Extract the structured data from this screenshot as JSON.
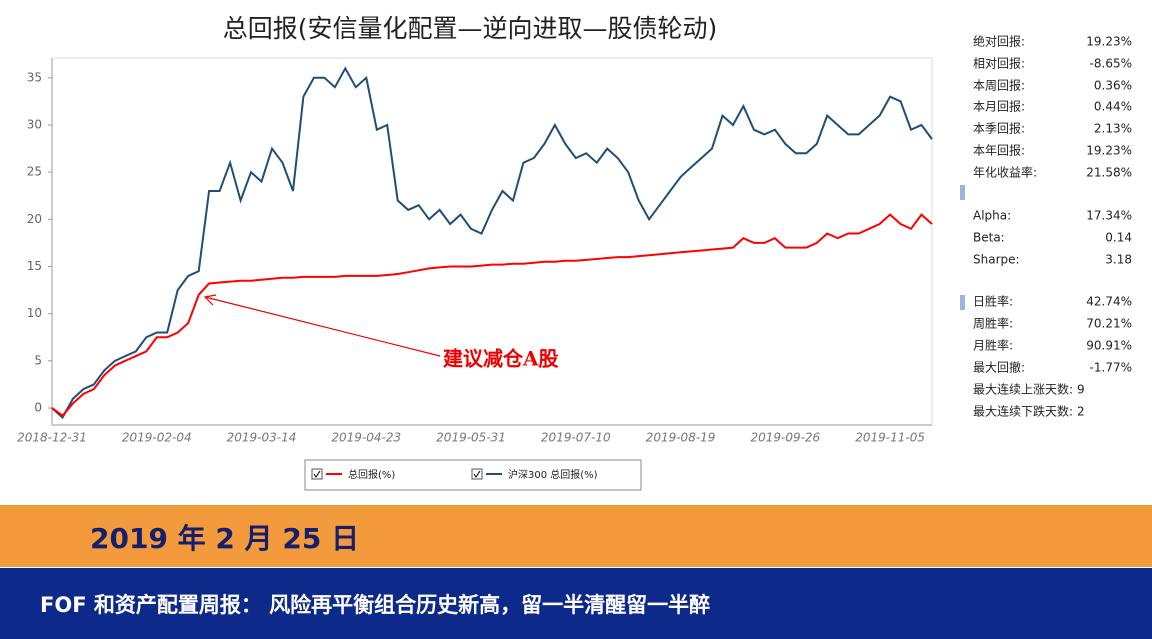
{
  "chart_data": {
    "type": "line",
    "title": "总回报(安信量化配置—逆向进取—股债轮动)",
    "categories": [
      "2018-12-31",
      null,
      null,
      null,
      null,
      null,
      null,
      null,
      null,
      null,
      "2019-02-04",
      null,
      null,
      null,
      null,
      null,
      null,
      null,
      null,
      null,
      "2019-03-14",
      null,
      null,
      null,
      null,
      null,
      null,
      null,
      null,
      null,
      "2019-04-23",
      null,
      null,
      null,
      null,
      null,
      null,
      null,
      null,
      null,
      "2019-05-31",
      null,
      null,
      null,
      null,
      null,
      null,
      null,
      null,
      null,
      "2019-07-10",
      null,
      null,
      null,
      null,
      null,
      null,
      null,
      null,
      null,
      "2019-08-19",
      null,
      null,
      null,
      null,
      null,
      null,
      null,
      null,
      null,
      "2019-09-26",
      null,
      null,
      null,
      null,
      null,
      null,
      null,
      null,
      null,
      "2019-11-05",
      null,
      null,
      null,
      null
    ],
    "series": [
      {
        "name": "总回报(%)",
        "color": "#ff0000",
        "values": [
          0,
          -0.8,
          0.5,
          1.5,
          2,
          3.5,
          4.5,
          5,
          5.5,
          6,
          7.5,
          7.5,
          8,
          9,
          12,
          13.2,
          13.3,
          13.4,
          13.5,
          13.5,
          13.6,
          13.7,
          13.8,
          13.8,
          13.9,
          13.9,
          13.9,
          13.9,
          14,
          14,
          14,
          14,
          14.1,
          14.2,
          14.4,
          14.6,
          14.8,
          14.9,
          15,
          15,
          15,
          15.1,
          15.2,
          15.2,
          15.3,
          15.3,
          15.4,
          15.5,
          15.5,
          15.6,
          15.6,
          15.7,
          15.8,
          15.9,
          16,
          16,
          16.1,
          16.2,
          16.3,
          16.4,
          16.5,
          16.6,
          16.7,
          16.8,
          16.9,
          17,
          18,
          17.5,
          17.5,
          18,
          17,
          17,
          17,
          17.5,
          18.5,
          18,
          18.5,
          18.5,
          19,
          19.5,
          20.5,
          19.5,
          19,
          20.5,
          19.5
        ]
      },
      {
        "name": "沪深300 总回报(%)",
        "color": "#1f4e79",
        "values": [
          0,
          -1,
          1,
          2,
          2.5,
          4,
          5,
          5.5,
          6,
          7.5,
          8,
          8,
          12.5,
          14,
          14.5,
          23,
          23,
          26,
          22,
          25,
          24,
          27.5,
          26,
          23,
          33,
          35,
          35,
          34,
          36,
          34,
          35,
          29.5,
          30,
          22,
          21,
          21.5,
          20,
          21,
          19.5,
          20.5,
          19,
          18.5,
          21,
          23,
          22,
          26,
          26.5,
          28,
          30,
          28,
          26.5,
          27,
          26,
          27.5,
          26.5,
          25,
          22,
          20,
          21.5,
          23,
          24.5,
          25.5,
          26.5,
          27.5,
          31,
          30,
          32,
          29.5,
          29,
          29.5,
          28,
          27,
          27,
          28,
          31,
          30,
          29,
          29,
          30,
          31,
          33,
          32.5,
          29.5,
          30,
          28.5
        ]
      }
    ],
    "ylim": [
      -1.8,
      37.1
    ],
    "yticks": [
      0,
      5,
      10,
      15,
      20,
      25,
      30,
      35
    ],
    "grid": false,
    "annotation": "建议减仓A股"
  },
  "stats": [
    [
      [
        "绝对回报:",
        "19.23%"
      ],
      [
        "相对回报:",
        "-8.65%"
      ],
      [
        "本周回报:",
        "0.36%"
      ],
      [
        "本月回报:",
        "0.44%"
      ],
      [
        "本季回报:",
        "2.13%"
      ],
      [
        "本年回报:",
        "19.23%"
      ],
      [
        "年化收益率:",
        "21.58%"
      ]
    ],
    [
      [
        "Alpha:",
        "17.34%"
      ],
      [
        "Beta:",
        "0.14"
      ],
      [
        "Sharpe:",
        "3.18"
      ]
    ],
    [
      [
        "日胜率:",
        "42.74%"
      ],
      [
        "周胜率:",
        "70.21%"
      ],
      [
        "月胜率:",
        "90.91%"
      ],
      [
        "最大回撤:",
        "-1.77%"
      ],
      [
        "最大连续上涨天数:",
        "9"
      ],
      [
        "最大连续下跌天数:",
        "2"
      ]
    ]
  ],
  "banner": {
    "date": "2019 年 2 月 25 日",
    "headline": "FOF 和资产配置周报： 风险再平衡组合历史新高，留一半清醒留一半醉"
  }
}
